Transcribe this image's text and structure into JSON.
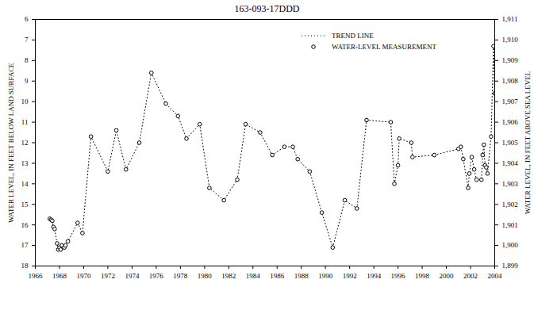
{
  "chart_data": {
    "type": "line",
    "title": "163-093-17DDD",
    "y_label": "WATER LEVEL, IN FEET BELOW LAND SURFACE",
    "y2_label": "WATER LEVEL, IN FEET ABOVE SEA LEVEL",
    "x": [
      1967.2,
      1967.3,
      1967.4,
      1967.5,
      1967.6,
      1967.8,
      1967.9,
      1968.0,
      1968.1,
      1968.2,
      1968.4,
      1968.5,
      1968.7,
      1969.5,
      1969.9,
      1970.6,
      1972.0,
      1972.7,
      1973.5,
      1974.6,
      1975.6,
      1976.8,
      1977.8,
      1978.5,
      1979.6,
      1980.4,
      1981.6,
      1982.7,
      1983.4,
      1984.6,
      1985.6,
      1986.6,
      1987.3,
      1987.7,
      1988.7,
      1989.7,
      1990.6,
      1991.6,
      1992.6,
      1993.4,
      1995.4,
      1995.7,
      1996.0,
      1996.1,
      1997.1,
      1997.2,
      1999.0,
      2001.0,
      2001.2,
      2001.4,
      2001.8,
      2001.9,
      2002.1,
      2002.3,
      2002.5,
      2002.9,
      2003.0,
      2003.1,
      2003.2,
      2003.3,
      2003.4,
      2003.7,
      2003.9,
      2004.0
    ],
    "series": [
      {
        "name": "TREND LINE",
        "type": "line",
        "line_style": "dotted",
        "color": "#000000",
        "values": [
          15.7,
          15.75,
          15.8,
          16.1,
          16.2,
          16.9,
          17.2,
          17.1,
          17.2,
          17.0,
          17.1,
          17.0,
          16.8,
          15.9,
          16.4,
          11.7,
          13.4,
          11.4,
          13.3,
          12.0,
          8.6,
          10.1,
          10.7,
          11.8,
          11.1,
          14.2,
          14.8,
          13.8,
          11.1,
          11.5,
          12.6,
          12.2,
          12.2,
          12.8,
          13.4,
          15.4,
          17.1,
          14.8,
          15.2,
          10.9,
          11.0,
          14.0,
          13.1,
          11.8,
          12.0,
          12.7,
          12.6,
          12.3,
          12.2,
          12.8,
          14.2,
          13.5,
          12.7,
          13.3,
          13.8,
          13.8,
          12.6,
          12.1,
          13.1,
          13.2,
          13.5,
          11.7,
          7.3,
          9.6
        ]
      },
      {
        "name": "WATER-LEVEL MEASUREMENT",
        "type": "scatter",
        "marker": "circle",
        "color": "#000000",
        "values": [
          15.7,
          15.75,
          15.8,
          16.1,
          16.2,
          16.9,
          17.2,
          17.1,
          17.2,
          17.0,
          17.1,
          17.0,
          16.8,
          15.9,
          16.4,
          11.7,
          13.4,
          11.4,
          13.3,
          12.0,
          8.6,
          10.1,
          10.7,
          11.8,
          11.1,
          14.2,
          14.8,
          13.8,
          11.1,
          11.5,
          12.6,
          12.2,
          12.2,
          12.8,
          13.4,
          15.4,
          17.1,
          14.8,
          15.2,
          10.9,
          11.0,
          14.0,
          13.1,
          11.8,
          12.0,
          12.7,
          12.6,
          12.3,
          12.2,
          12.8,
          14.2,
          13.5,
          12.7,
          13.3,
          13.8,
          13.8,
          12.6,
          12.1,
          13.1,
          13.2,
          13.5,
          11.7,
          7.3,
          9.6
        ]
      }
    ],
    "xlim": [
      1966,
      2004
    ],
    "xticks": [
      1966,
      1968,
      1970,
      1972,
      1974,
      1976,
      1978,
      1980,
      1982,
      1984,
      1986,
      1988,
      1990,
      1992,
      1994,
      1996,
      1998,
      2000,
      2002,
      2004
    ],
    "ylim": [
      18,
      6
    ],
    "yticks": [
      6,
      7,
      8,
      9,
      10,
      11,
      12,
      13,
      14,
      15,
      16,
      17,
      18
    ],
    "y2lim": [
      1899,
      1911
    ],
    "y2ticks": [
      {
        "value": 1899,
        "label": "1,899"
      },
      {
        "value": 1900,
        "label": "1,900"
      },
      {
        "value": 1901,
        "label": "1,901"
      },
      {
        "value": 1902,
        "label": "1,902"
      },
      {
        "value": 1903,
        "label": "1,903"
      },
      {
        "value": 1904,
        "label": "1,904"
      },
      {
        "value": 1905,
        "label": "1,905"
      },
      {
        "value": 1906,
        "label": "1,906"
      },
      {
        "value": 1907,
        "label": "1,907"
      },
      {
        "value": 1908,
        "label": "1,908"
      },
      {
        "value": 1909,
        "label": "1,909"
      },
      {
        "value": 1910,
        "label": "1,910"
      },
      {
        "value": 1911,
        "label": "1,911"
      }
    ],
    "legend": "top-right",
    "grid": false
  }
}
